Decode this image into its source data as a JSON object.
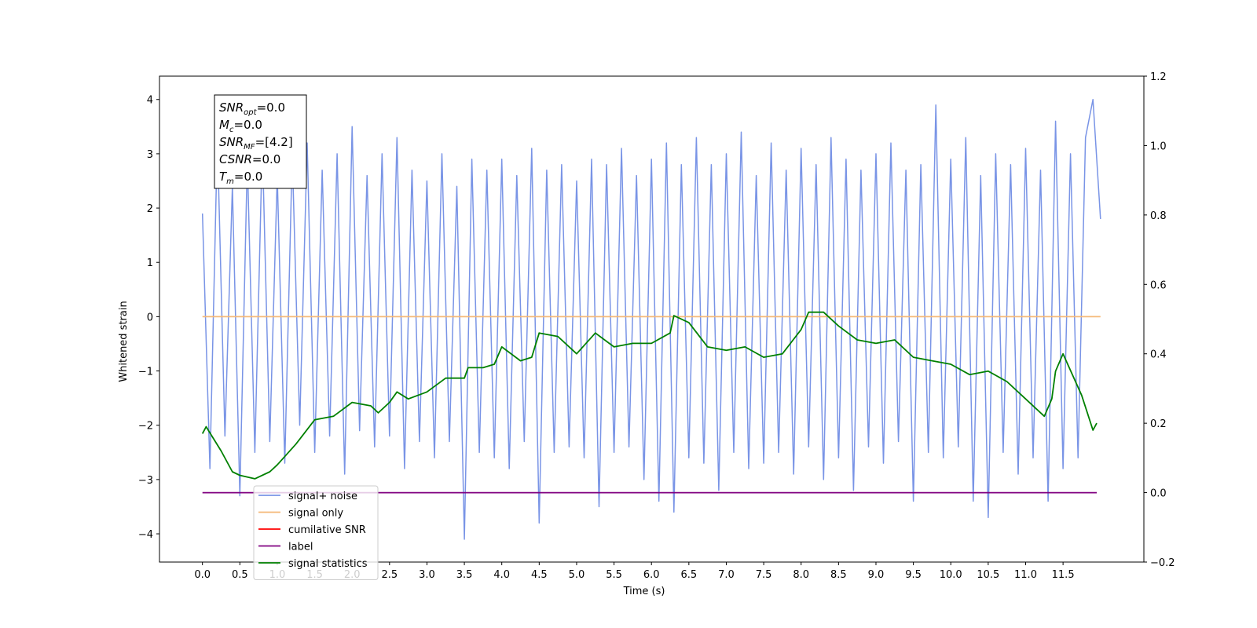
{
  "chart_data": {
    "type": "line",
    "xlabel": "Time (s)",
    "ylabel": "Whitened strain",
    "xlim": [
      -0.574,
      12.58
    ],
    "ylim": [
      -4.52,
      4.43
    ],
    "y2lim": [
      -0.2,
      1.2
    ],
    "xticks": [
      {
        "value": 0,
        "label": "0.0"
      },
      0.5,
      {
        "value": 1,
        "label": "1.0"
      },
      1.5,
      {
        "value": 2,
        "label": "2.0"
      },
      2.5,
      {
        "value": 3,
        "label": "3.0"
      },
      3.5,
      {
        "value": 4,
        "label": "4.0"
      },
      4.5,
      {
        "value": 5,
        "label": "5.0"
      },
      5.5,
      {
        "value": 6,
        "label": "6.0"
      },
      6.5,
      {
        "value": 7,
        "label": "7.0"
      },
      7.5,
      {
        "value": 8,
        "label": "8.0"
      },
      8.5,
      {
        "value": 9,
        "label": "9.0"
      },
      9.5,
      {
        "value": 10,
        "label": "10.0"
      },
      10.5,
      {
        "value": 11,
        "label": "11.0"
      },
      11.5
    ],
    "yticks": [
      {
        "value": -4,
        "label": "−4"
      },
      {
        "value": -3,
        "label": "−3"
      },
      {
        "value": -2,
        "label": "−2"
      },
      {
        "value": -1,
        "label": "−1"
      },
      0,
      1,
      2,
      3,
      4
    ],
    "y2ticks": [
      {
        "value": -0.2,
        "label": "−0.2"
      },
      {
        "value": 0,
        "label": "0.0"
      },
      0.2,
      0.4,
      0.6,
      0.8,
      {
        "value": 1,
        "label": "1.0"
      },
      1.2
    ],
    "legend": "lower left",
    "annotations": [
      {
        "base": "SNR",
        "sub": "opt",
        "rest": "=0.0"
      },
      {
        "base": "M",
        "sub": "c",
        "rest": "=0.0"
      },
      {
        "base": "SNR",
        "sub": "MF",
        "rest": "=[4.2]"
      },
      {
        "base": "CSNR",
        "rest": "=0.0"
      },
      {
        "base": "T",
        "sub": "m",
        "rest": "=0.0"
      }
    ],
    "series": [
      {
        "name": "signal+ noise",
        "color": "#7994e6",
        "x": [
          0,
          0.1,
          0.2,
          0.3,
          0.4,
          0.5,
          0.6,
          0.7,
          0.8,
          0.9,
          1,
          1.1,
          1.2,
          1.3,
          1.4,
          1.5,
          1.6,
          1.7,
          1.8,
          1.9,
          2,
          2.1,
          2.2,
          2.3,
          2.4,
          2.5,
          2.6,
          2.7,
          2.8,
          2.9,
          3,
          3.1,
          3.2,
          3.3,
          3.4,
          3.5,
          3.6,
          3.7,
          3.8,
          3.9,
          4,
          4.1,
          4.2,
          4.3,
          4.4,
          4.5,
          4.6,
          4.7,
          4.8,
          4.9,
          5,
          5.1,
          5.2,
          5.3,
          5.4,
          5.5,
          5.6,
          5.7,
          5.8,
          5.9,
          6,
          6.1,
          6.2,
          6.3,
          6.4,
          6.5,
          6.6,
          6.7,
          6.8,
          6.9,
          7,
          7.1,
          7.2,
          7.3,
          7.4,
          7.5,
          7.6,
          7.7,
          7.8,
          7.9,
          8,
          8.1,
          8.2,
          8.3,
          8.4,
          8.5,
          8.6,
          8.7,
          8.8,
          8.9,
          9,
          9.1,
          9.2,
          9.3,
          9.4,
          9.5,
          9.6,
          9.7,
          9.8,
          9.9,
          10,
          10.1,
          10.2,
          10.3,
          10.4,
          10.5,
          10.6,
          10.7,
          10.8,
          10.9,
          11,
          11.1,
          11.2,
          11.3,
          11.4,
          11.5,
          11.6,
          11.7,
          11.8,
          11.9,
          12
        ],
        "values": [
          1.9,
          -2.8,
          3.3,
          -2.2,
          2.4,
          -3.3,
          2.9,
          -2.5,
          3.2,
          -2.3,
          2.6,
          -2.7,
          3.0,
          -2.0,
          3.2,
          -2.5,
          2.7,
          -2.2,
          3.0,
          -2.9,
          3.5,
          -2.1,
          2.6,
          -2.4,
          3.0,
          -2.2,
          3.3,
          -2.8,
          2.7,
          -2.3,
          2.5,
          -2.6,
          3.0,
          -2.3,
          2.4,
          -4.1,
          2.9,
          -2.5,
          2.7,
          -2.6,
          2.9,
          -2.8,
          2.6,
          -2.3,
          3.1,
          -3.8,
          2.7,
          -2.5,
          2.8,
          -2.4,
          2.5,
          -2.6,
          2.9,
          -3.5,
          2.8,
          -2.5,
          3.1,
          -2.4,
          2.6,
          -3.0,
          2.9,
          -3.4,
          3.2,
          -3.6,
          2.8,
          -2.6,
          3.3,
          -2.7,
          2.8,
          -3.2,
          3.0,
          -2.5,
          3.4,
          -2.8,
          2.6,
          -2.7,
          3.2,
          -2.5,
          2.7,
          -2.9,
          3.1,
          -2.4,
          2.8,
          -3.0,
          3.3,
          -2.6,
          2.9,
          -3.2,
          2.7,
          -2.4,
          3.0,
          -2.7,
          3.2,
          -2.3,
          2.7,
          -3.4,
          2.8,
          -2.5,
          3.9,
          -2.6,
          2.9,
          -2.4,
          3.3,
          -3.4,
          2.6,
          -3.7,
          3.0,
          -2.5,
          2.8,
          -2.9,
          3.1,
          -2.6,
          2.7,
          -3.4,
          3.6,
          -2.8,
          3.0,
          -2.6,
          3.3,
          4.0,
          1.8
        ]
      },
      {
        "name": "signal only",
        "color": "#f5b978",
        "x": [
          0,
          12
        ],
        "values": [
          0,
          0
        ]
      },
      {
        "name": "cumilative SNR",
        "color": "#ff0000"
      },
      {
        "name": "label",
        "color": "#800080",
        "axis": "y2",
        "x": [
          0,
          11.95
        ],
        "values": [
          0,
          0
        ]
      },
      {
        "name": "signal statistics",
        "color": "#008000",
        "axis": "y2",
        "x": [
          0,
          0.05,
          0.25,
          0.4,
          0.5,
          0.7,
          0.9,
          1,
          1.25,
          1.5,
          1.75,
          2,
          2.25,
          2.35,
          2.5,
          2.6,
          2.75,
          3,
          3.25,
          3.5,
          3.55,
          3.75,
          3.9,
          4,
          4.25,
          4.4,
          4.5,
          4.75,
          5,
          5.25,
          5.5,
          5.75,
          6,
          6.25,
          6.3,
          6.5,
          6.75,
          7,
          7.25,
          7.5,
          7.75,
          8,
          8.1,
          8.3,
          8.5,
          8.75,
          9,
          9.25,
          9.5,
          9.75,
          10,
          10.25,
          10.5,
          10.75,
          11,
          11.25,
          11.35,
          11.4,
          11.5,
          11.75,
          11.9,
          11.95
        ],
        "values": [
          0.17,
          0.19,
          0.12,
          0.06,
          0.05,
          0.04,
          0.06,
          0.08,
          0.14,
          0.21,
          0.22,
          0.26,
          0.25,
          0.23,
          0.26,
          0.29,
          0.27,
          0.29,
          0.33,
          0.33,
          0.36,
          0.36,
          0.37,
          0.42,
          0.38,
          0.39,
          0.46,
          0.45,
          0.4,
          0.46,
          0.42,
          0.43,
          0.43,
          0.46,
          0.51,
          0.49,
          0.42,
          0.41,
          0.42,
          0.39,
          0.4,
          0.47,
          0.52,
          0.52,
          0.48,
          0.44,
          0.43,
          0.44,
          0.39,
          0.38,
          0.37,
          0.34,
          0.35,
          0.32,
          0.27,
          0.22,
          0.27,
          0.35,
          0.4,
          0.28,
          0.18,
          0.2
        ]
      }
    ]
  }
}
